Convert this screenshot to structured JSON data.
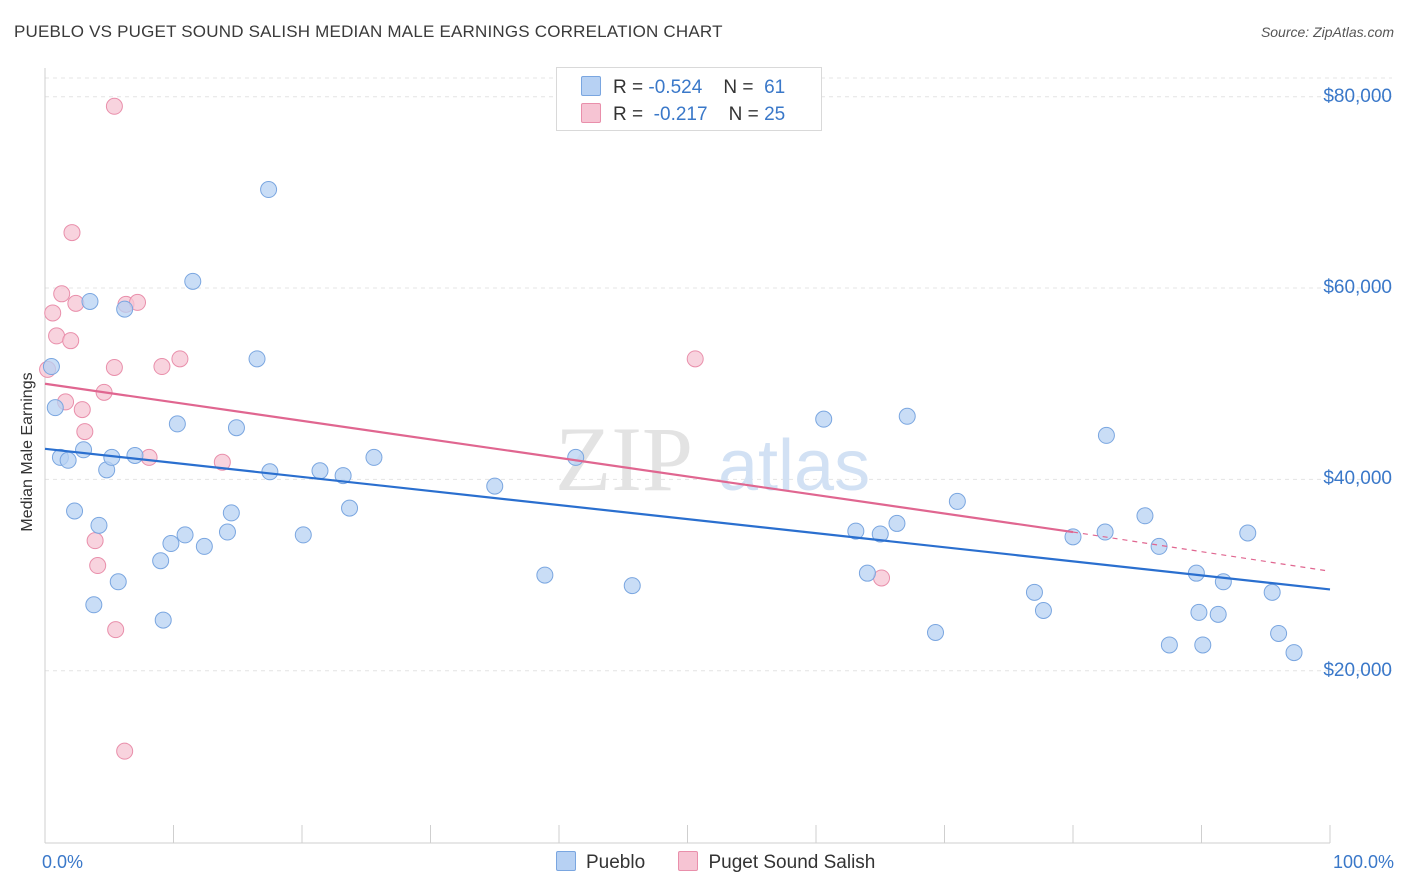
{
  "title": "PUEBLO VS PUGET SOUND SALISH MEDIAN MALE EARNINGS CORRELATION CHART",
  "source": "Source: ZipAtlas.com",
  "watermark": {
    "zip": "ZIP",
    "atlas": "atlas"
  },
  "legend": {
    "rows": [
      {
        "r_label": "R =",
        "r_value": "-0.524",
        "n_label": "N =",
        "n_value": "61"
      },
      {
        "r_label": "R =",
        "r_value": "-0.217",
        "n_label": "N =",
        "n_value": "25"
      }
    ]
  },
  "colors": {
    "pueblo_fill": "#b7d1f3",
    "pueblo_stroke": "#7aa6e0",
    "pueblo_line": "#2a6fcf",
    "salish_fill": "#f6c4d3",
    "salish_stroke": "#e98fab",
    "salish_line": "#e06690",
    "axis_text": "#3a78c9",
    "grid": "#e4e4e4"
  },
  "chart_data": {
    "type": "scatter",
    "title": "PUEBLO VS PUGET SOUND SALISH MEDIAN MALE EARNINGS CORRELATION CHART",
    "xlabel": "",
    "ylabel": "Median Male Earnings",
    "xlim": [
      0,
      100
    ],
    "ylim": [
      2000,
      83000
    ],
    "x_tick_labels": [
      "0.0%",
      "100.0%"
    ],
    "y_ticks": [
      20000,
      40000,
      60000,
      80000
    ],
    "y_tick_labels": [
      "$20,000",
      "$40,000",
      "$60,000",
      "$80,000"
    ],
    "grid": true,
    "legend_position": "top-center",
    "series": [
      {
        "name": "Pueblo",
        "r": -0.524,
        "n": 61,
        "trend": {
          "x0": 0,
          "y0": 43200,
          "x1": 100,
          "y1": 28500
        },
        "points": [
          [
            0.5,
            51800
          ],
          [
            0.8,
            47500
          ],
          [
            1.2,
            42300
          ],
          [
            1.8,
            42000
          ],
          [
            2.3,
            36700
          ],
          [
            3.0,
            43100
          ],
          [
            3.5,
            58600
          ],
          [
            3.8,
            26900
          ],
          [
            4.2,
            35200
          ],
          [
            4.8,
            41000
          ],
          [
            5.2,
            42300
          ],
          [
            5.7,
            29300
          ],
          [
            6.2,
            57800
          ],
          [
            7.0,
            42500
          ],
          [
            9.0,
            31500
          ],
          [
            9.2,
            25300
          ],
          [
            9.8,
            33300
          ],
          [
            10.3,
            45800
          ],
          [
            10.9,
            34200
          ],
          [
            11.5,
            60700
          ],
          [
            12.4,
            33000
          ],
          [
            14.2,
            34500
          ],
          [
            14.5,
            36500
          ],
          [
            14.9,
            45400
          ],
          [
            16.5,
            52600
          ],
          [
            17.4,
            70300
          ],
          [
            17.5,
            40800
          ],
          [
            20.1,
            34200
          ],
          [
            21.4,
            40900
          ],
          [
            23.2,
            40400
          ],
          [
            23.7,
            37000
          ],
          [
            25.6,
            42300
          ],
          [
            35.0,
            39300
          ],
          [
            38.9,
            30000
          ],
          [
            41.3,
            42300
          ],
          [
            45.7,
            28900
          ],
          [
            60.6,
            46300
          ],
          [
            63.1,
            34600
          ],
          [
            64.0,
            30200
          ],
          [
            65.0,
            34300
          ],
          [
            66.3,
            35400
          ],
          [
            67.1,
            46600
          ],
          [
            69.3,
            24000
          ],
          [
            71.0,
            37700
          ],
          [
            77.0,
            28200
          ],
          [
            77.7,
            26300
          ],
          [
            80.0,
            34000
          ],
          [
            82.5,
            34500
          ],
          [
            82.6,
            44600
          ],
          [
            85.6,
            36200
          ],
          [
            86.7,
            33000
          ],
          [
            87.5,
            22700
          ],
          [
            89.6,
            30200
          ],
          [
            89.8,
            26100
          ],
          [
            90.1,
            22700
          ],
          [
            91.3,
            25900
          ],
          [
            91.7,
            29300
          ],
          [
            93.6,
            34400
          ],
          [
            95.5,
            28200
          ],
          [
            96.0,
            23900
          ],
          [
            97.2,
            21900
          ]
        ]
      },
      {
        "name": "Puget Sound Salish",
        "r": -0.217,
        "n": 25,
        "trend_solid": {
          "x0": 0,
          "y0": 50000,
          "x1": 80,
          "y1": 34500
        },
        "trend_dashed": {
          "x0": 80,
          "y0": 34500,
          "x1": 100,
          "y1": 30400
        },
        "points": [
          [
            0.2,
            51500
          ],
          [
            0.6,
            57400
          ],
          [
            0.9,
            55000
          ],
          [
            1.3,
            59400
          ],
          [
            1.6,
            48100
          ],
          [
            2.0,
            54500
          ],
          [
            2.1,
            65800
          ],
          [
            2.4,
            58400
          ],
          [
            2.9,
            47300
          ],
          [
            3.1,
            45000
          ],
          [
            3.9,
            33600
          ],
          [
            4.1,
            31000
          ],
          [
            4.6,
            49100
          ],
          [
            5.4,
            51700
          ],
          [
            5.5,
            24300
          ],
          [
            5.4,
            79000
          ],
          [
            6.2,
            11600
          ],
          [
            6.3,
            58300
          ],
          [
            7.2,
            58500
          ],
          [
            8.1,
            42300
          ],
          [
            9.1,
            51800
          ],
          [
            10.5,
            52600
          ],
          [
            13.8,
            41800
          ],
          [
            50.6,
            52600
          ],
          [
            65.1,
            29700
          ]
        ]
      }
    ]
  }
}
